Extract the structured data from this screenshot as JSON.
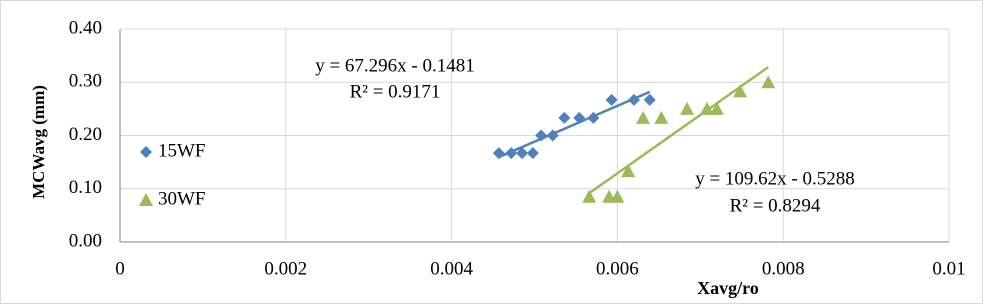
{
  "chart_data": {
    "type": "scatter",
    "x_label": "Xavg/ro",
    "y_label": "MCWavg (mm)",
    "xlim": [
      0,
      0.01
    ],
    "xticks": [
      0,
      0.002,
      0.004,
      0.006,
      0.008,
      0.01
    ],
    "ylim": [
      0,
      0.4
    ],
    "yticks": [
      {
        "value": 0,
        "label": "0.00"
      },
      {
        "value": 0.1,
        "label": "0.10"
      },
      {
        "value": 0.2,
        "label": "0.20"
      },
      {
        "value": 0.3,
        "label": "0.30"
      },
      {
        "value": 0.4,
        "label": "0.40"
      }
    ],
    "grid": true,
    "legend": "left",
    "series": [
      {
        "name": "15WF",
        "color": "#4f81bd",
        "marker": "diamond",
        "x": [
          0.00457,
          0.00472,
          0.00485,
          0.00498,
          0.00508,
          0.00522,
          0.00536,
          0.00554,
          0.00571,
          0.00593,
          0.0062,
          0.00639
        ],
        "values": [
          0.167,
          0.167,
          0.167,
          0.167,
          0.2,
          0.2,
          0.233,
          0.233,
          0.233,
          0.267,
          0.267,
          0.267
        ],
        "trendline": {
          "slope": 67.296,
          "intercept": -0.1481,
          "equation": "y = 67.296x - 0.1481",
          "r2": "R² = 0.9171"
        }
      },
      {
        "name": "30WF",
        "color": "#9bbb59",
        "marker": "triangle",
        "x": [
          0.00566,
          0.0059,
          0.006,
          0.00613,
          0.00631,
          0.00653,
          0.00684,
          0.00708,
          0.0072,
          0.00748,
          0.00782
        ],
        "values": [
          0.085,
          0.085,
          0.085,
          0.133,
          0.233,
          0.233,
          0.25,
          0.25,
          0.25,
          0.283,
          0.3
        ],
        "trendline": {
          "slope": 109.62,
          "intercept": -0.5288,
          "equation": "y = 109.62x - 0.5288",
          "r2": "R² = 0.8294"
        }
      }
    ]
  }
}
